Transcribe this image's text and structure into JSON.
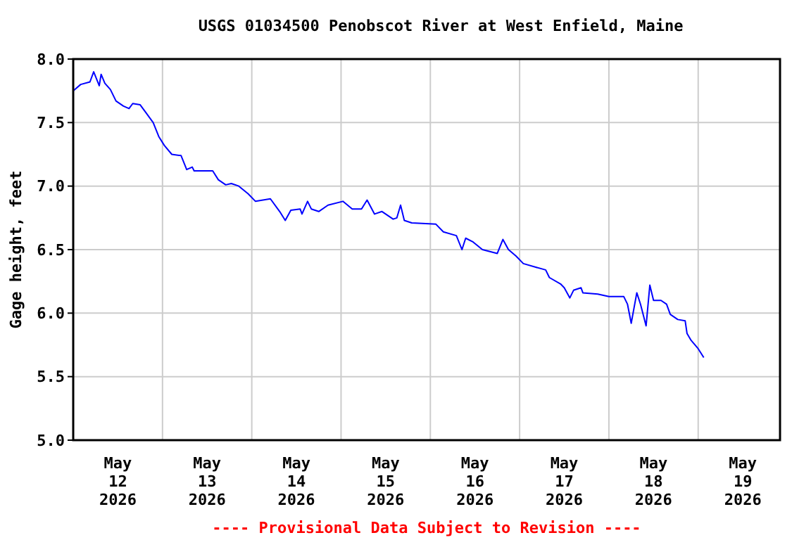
{
  "chart_data": {
    "type": "line",
    "title": "USGS 01034500 Penobscot River at West Enfield, Maine",
    "ylabel": "Gage height, feet",
    "annotations": [
      "---- Provisional Data Subject to Revision ----"
    ],
    "x": [
      "2026-05-12T00:00",
      "2026-05-12T02:00",
      "2026-05-12T04:30",
      "2026-05-12T05:30",
      "2026-05-12T07:00",
      "2026-05-12T07:30",
      "2026-05-12T08:30",
      "2026-05-12T10:00",
      "2026-05-12T11:30",
      "2026-05-12T13:30",
      "2026-05-12T15:00",
      "2026-05-12T16:00",
      "2026-05-12T18:00",
      "2026-05-12T19:30",
      "2026-05-12T21:30",
      "2026-05-12T23:00",
      "2026-05-13T00:30",
      "2026-05-13T02:30",
      "2026-05-13T05:00",
      "2026-05-13T06:30",
      "2026-05-13T08:00",
      "2026-05-13T08:30",
      "2026-05-13T13:30",
      "2026-05-13T15:00",
      "2026-05-13T17:00",
      "2026-05-13T18:30",
      "2026-05-13T20:30",
      "2026-05-13T23:00",
      "2026-05-14T01:00",
      "2026-05-14T05:00",
      "2026-05-14T07:30",
      "2026-05-14T09:00",
      "2026-05-14T10:30",
      "2026-05-14T13:00",
      "2026-05-14T13:30",
      "2026-05-14T15:00",
      "2026-05-14T16:00",
      "2026-05-14T18:00",
      "2026-05-14T20:30",
      "2026-05-15T00:30",
      "2026-05-15T03:00",
      "2026-05-15T05:30",
      "2026-05-15T07:00",
      "2026-05-15T09:00",
      "2026-05-15T11:00",
      "2026-05-15T14:00",
      "2026-05-15T15:00",
      "2026-05-15T16:00",
      "2026-05-15T17:00",
      "2026-05-15T19:00",
      "2026-05-16T01:30",
      "2026-05-16T03:30",
      "2026-05-16T07:00",
      "2026-05-16T08:30",
      "2026-05-16T09:30",
      "2026-05-16T11:30",
      "2026-05-16T14:00",
      "2026-05-16T18:00",
      "2026-05-16T19:30",
      "2026-05-16T21:00",
      "2026-05-16T23:00",
      "2026-05-17T01:00",
      "2026-05-17T04:30",
      "2026-05-17T07:00",
      "2026-05-17T08:00",
      "2026-05-17T11:00",
      "2026-05-17T12:00",
      "2026-05-17T13:30",
      "2026-05-17T14:30",
      "2026-05-17T16:30",
      "2026-05-17T17:00",
      "2026-05-17T21:00",
      "2026-05-18T00:00",
      "2026-05-18T04:00",
      "2026-05-18T05:00",
      "2026-05-18T06:00",
      "2026-05-18T07:30",
      "2026-05-18T08:30",
      "2026-05-18T10:00",
      "2026-05-18T11:00",
      "2026-05-18T12:00",
      "2026-05-18T14:00",
      "2026-05-18T15:30",
      "2026-05-18T16:30",
      "2026-05-18T18:30",
      "2026-05-18T20:30",
      "2026-05-18T21:00",
      "2026-05-18T22:00",
      "2026-05-19T00:00",
      "2026-05-19T01:30"
    ],
    "series": [
      {
        "color": "#0000ff",
        "values": [
          7.75,
          7.8,
          7.82,
          7.9,
          7.79,
          7.88,
          7.81,
          7.76,
          7.67,
          7.63,
          7.61,
          7.65,
          7.64,
          7.58,
          7.5,
          7.39,
          7.32,
          7.25,
          7.24,
          7.13,
          7.15,
          7.12,
          7.12,
          7.05,
          7.01,
          7.02,
          7.0,
          6.94,
          6.88,
          6.9,
          6.8,
          6.73,
          6.81,
          6.82,
          6.78,
          6.88,
          6.82,
          6.8,
          6.85,
          6.88,
          6.82,
          6.82,
          6.89,
          6.78,
          6.8,
          6.74,
          6.75,
          6.85,
          6.73,
          6.71,
          6.7,
          6.64,
          6.61,
          6.5,
          6.59,
          6.56,
          6.5,
          6.47,
          6.58,
          6.5,
          6.45,
          6.39,
          6.36,
          6.34,
          6.28,
          6.23,
          6.2,
          6.12,
          6.18,
          6.2,
          6.16,
          6.15,
          6.13,
          6.13,
          6.07,
          5.92,
          6.16,
          6.07,
          5.9,
          6.22,
          6.1,
          6.1,
          6.07,
          5.99,
          5.95,
          5.94,
          5.84,
          5.79,
          5.72,
          5.65
        ]
      }
    ],
    "xlim": [
      "2026-05-12T00:00",
      "2026-05-19T22:00"
    ],
    "xticks": [
      {
        "value": "2026-05-12T12:00",
        "label": "May\n12\n2026"
      },
      {
        "value": "2026-05-13T12:00",
        "label": "May\n13\n2026"
      },
      {
        "value": "2026-05-14T12:00",
        "label": "May\n14\n2026"
      },
      {
        "value": "2026-05-15T12:00",
        "label": "May\n15\n2026"
      },
      {
        "value": "2026-05-16T12:00",
        "label": "May\n16\n2026"
      },
      {
        "value": "2026-05-17T12:00",
        "label": "May\n17\n2026"
      },
      {
        "value": "2026-05-18T12:00",
        "label": "May\n18\n2026"
      },
      {
        "value": "2026-05-19T12:00",
        "label": "May\n19\n2026"
      },
      {
        "value": "2026-05-13T00:00",
        "label": null
      },
      {
        "value": "2026-05-14T00:00",
        "label": null
      },
      {
        "value": "2026-05-15T00:00",
        "label": null
      },
      {
        "value": "2026-05-16T00:00",
        "label": null
      },
      {
        "value": "2026-05-17T00:00",
        "label": null
      },
      {
        "value": "2026-05-18T00:00",
        "label": null
      },
      {
        "value": "2026-05-19T00:00",
        "label": null
      }
    ],
    "ylim": [
      5,
      8
    ],
    "yticks": [
      {
        "value": 5,
        "label": "5.0"
      },
      {
        "value": 5.5,
        "label": "5.5"
      },
      {
        "value": 6,
        "label": "6.0"
      },
      {
        "value": 6.5,
        "label": "6.5"
      },
      {
        "value": 7,
        "label": "7.0"
      },
      {
        "value": 7.5,
        "label": "7.5"
      },
      {
        "value": 8,
        "label": "8.0"
      }
    ],
    "grid": true
  }
}
